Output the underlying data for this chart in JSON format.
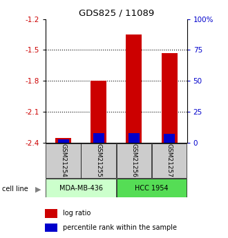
{
  "title": "GDS825 / 11089",
  "samples": [
    "GSM21254",
    "GSM21255",
    "GSM21256",
    "GSM21257"
  ],
  "log_ratios": [
    -2.35,
    -1.8,
    -1.35,
    -1.53
  ],
  "percentile_ranks": [
    3,
    8,
    8,
    7
  ],
  "baseline": -2.4,
  "ylim": [
    -2.4,
    -1.2
  ],
  "yticks_left": [
    -2.4,
    -2.1,
    -1.8,
    -1.5,
    -1.2
  ],
  "yticks_right": [
    0,
    25,
    50,
    75,
    100
  ],
  "y_right_labels": [
    "0",
    "25",
    "50",
    "75",
    "100%"
  ],
  "cell_lines": [
    {
      "label": "MDA-MB-436",
      "samples": [
        0,
        1
      ],
      "color": "#ccffcc"
    },
    {
      "label": "HCC 1954",
      "samples": [
        2,
        3
      ],
      "color": "#55dd55"
    }
  ],
  "bar_width": 0.45,
  "bar_color_red": "#cc0000",
  "bar_color_blue": "#0000cc",
  "background_color": "#ffffff",
  "xlabel_color": "#cc0000",
  "ylabel_right_color": "#0000cc",
  "sample_box_color": "#cccccc",
  "legend_red_label": "log ratio",
  "legend_blue_label": "percentile rank within the sample",
  "gridline_y": [
    -1.5,
    -1.8,
    -2.1
  ]
}
